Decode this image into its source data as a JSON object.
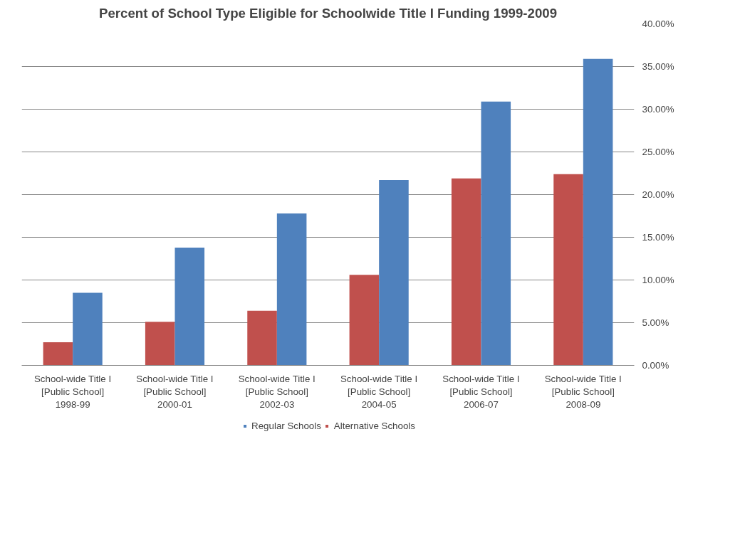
{
  "chart_data": {
    "type": "bar",
    "title": "Percent of School Type Eligible for Schoolwide Title I Funding 1999-2009",
    "categories": [
      "School-wide Title I [Public School] 1998-99",
      "School-wide Title I [Public School] 2000-01",
      "School-wide Title I [Public School] 2002-03",
      "School-wide Title I [Public School] 2004-05",
      "School-wide Title I [Public School] 2006-07",
      "School-wide Title I [Public School] 2008-09"
    ],
    "series": [
      {
        "name": "Alternative Schools",
        "color": "#c0504d",
        "values": [
          2.7,
          5.1,
          6.4,
          10.6,
          21.9,
          22.4
        ]
      },
      {
        "name": "Regular Schools",
        "color": "#4f81bd",
        "values": [
          8.5,
          13.8,
          17.8,
          21.7,
          30.9,
          35.9
        ]
      }
    ],
    "ylim": [
      0,
      40
    ],
    "yticks": [
      {
        "value": 0,
        "label": "0.00%"
      },
      {
        "value": 5,
        "label": "5.00%"
      },
      {
        "value": 10,
        "label": "10.00%"
      },
      {
        "value": 15,
        "label": "15.00%"
      },
      {
        "value": 20,
        "label": "20.00%"
      },
      {
        "value": 25,
        "label": "25.00%"
      },
      {
        "value": 30,
        "label": "30.00%"
      },
      {
        "value": 35,
        "label": "35.00%"
      },
      {
        "value": 40,
        "label": "40.00%"
      }
    ],
    "grid": "y",
    "legend": "bottom"
  }
}
